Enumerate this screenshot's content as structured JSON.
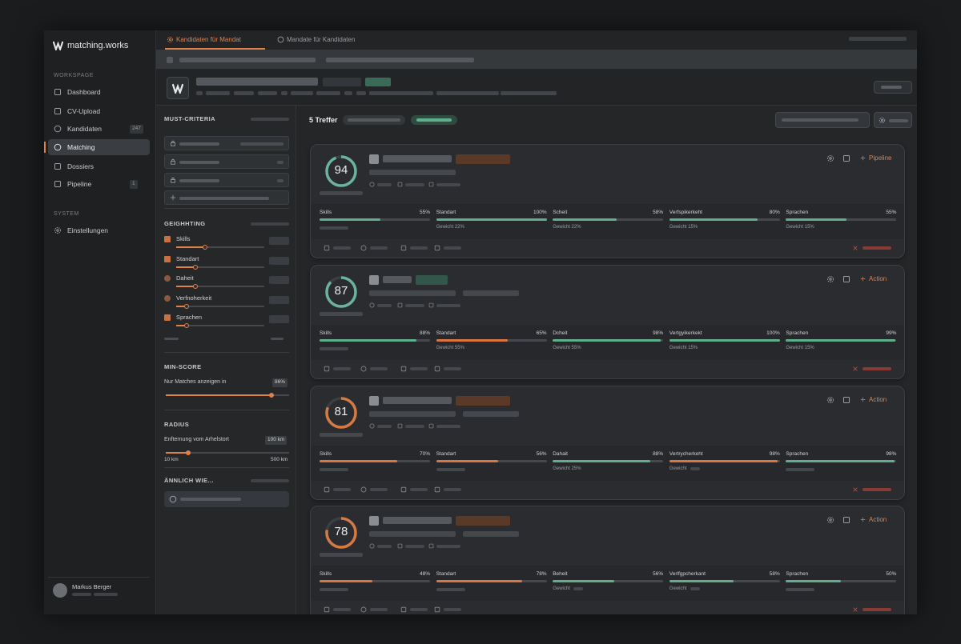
{
  "sidebar": {
    "brand": "matching.works",
    "section_workspace": "WORKSPAGE",
    "nav": [
      {
        "label": "Dashboard"
      },
      {
        "label": "CV-Upload"
      },
      {
        "label": "Kandidaten",
        "badge": 247
      },
      {
        "label": "Matching",
        "active": true
      },
      {
        "label": "Dossiers"
      },
      {
        "label": "Pipeline",
        "badge": 1
      }
    ],
    "section_system": "SYSTEM",
    "settings": "Einstellungen",
    "user": "Markus Berger"
  },
  "tabs": [
    {
      "label": "Kandidaten für Mandat",
      "active": true
    },
    {
      "label": "Mandate für Kandidaten",
      "active": false
    }
  ],
  "filters": {
    "must_criteria": "MUST-CRITERIA",
    "weighting": {
      "title": "GEIGHHTING",
      "items": [
        {
          "label": "Skills",
          "checked": true
        },
        {
          "label": "Standart",
          "checked": true
        },
        {
          "label": "Daheit",
          "checked": false
        },
        {
          "label": "Verfnoherkeit",
          "checked": false
        },
        {
          "label": "Sprachen",
          "checked": true
        }
      ]
    },
    "min_score": {
      "title": "MIN-SCORE",
      "label": "Nur Matches anzeigen in",
      "value": 86,
      "value_label": "86%"
    },
    "radius": {
      "title": "RADIUS",
      "label": "Enfternung vom Arhelstort",
      "value": {
        "value": 100,
        "label": "100 km"
      },
      "min": {
        "value": 10,
        "label": "10 km"
      },
      "max": {
        "value": 500,
        "label": "500 km"
      }
    },
    "similar": "ÄNNLICH WIE..."
  },
  "results": {
    "count_label": "5 Treffer",
    "cards": [
      {
        "score": 94,
        "color": "#6bb39a",
        "action": "Pipeline",
        "criteria": [
          {
            "name": "Skills",
            "value": 55,
            "value_label": "55%",
            "color": "#5fae8c"
          },
          {
            "name": "Standart",
            "value": 100,
            "value_label": "100%",
            "color": "#5fae8c",
            "weight": "Gewicht 22%"
          },
          {
            "name": "Scheit",
            "value": 58,
            "value_label": "58%",
            "color": "#5fae8c",
            "weight": "Gewicht 22%"
          },
          {
            "name": "Verfspikerkeht",
            "value": 80,
            "value_label": "80%",
            "color": "#5fae8c",
            "weight": "Gewicht 15%"
          },
          {
            "name": "Sprachen",
            "value": 55,
            "value_label": "55%",
            "color": "#5fae8c",
            "weight": "Gewicht 15%"
          }
        ]
      },
      {
        "score": 87,
        "color": "#6bb39a",
        "action": "Action",
        "criteria": [
          {
            "name": "Skills",
            "value": 88,
            "value_label": "88%",
            "color": "#5fae8c"
          },
          {
            "name": "Standart",
            "value": 65,
            "value_label": "65%",
            "color": "#d9773f",
            "weight": "Gewicht 55%"
          },
          {
            "name": "Dcheit",
            "value": 98,
            "value_label": "98%",
            "color": "#5fae8c",
            "weight": "Gewicht 55%"
          },
          {
            "name": "Vertgyikerkekt",
            "value": 100,
            "value_label": "100%",
            "color": "#5fae8c",
            "weight": "Gewicht 15%"
          },
          {
            "name": "Sprachen",
            "value": 99,
            "value_label": "99%",
            "color": "#5fae8c",
            "weight": "Gewicht 15%"
          }
        ]
      },
      {
        "score": 81,
        "color": "#d57a45",
        "action": "Action",
        "criteria": [
          {
            "name": "Skills",
            "value": 70,
            "value_label": "70%",
            "color": "#d9773f"
          },
          {
            "name": "Standart",
            "value": 56,
            "value_label": "56%",
            "color": "#d9773f"
          },
          {
            "name": "Dahait",
            "value": 88,
            "value_label": "88%",
            "color": "#5fae8c",
            "weight": "Gewicht 25%"
          },
          {
            "name": "Vertrycherkeht",
            "value": 98,
            "value_label": "98%",
            "color": "#d9773f",
            "weight": "Gewicht"
          },
          {
            "name": "Sprachen",
            "value": 98,
            "value_label": "98%",
            "color": "#5fae8c"
          }
        ]
      },
      {
        "score": 78,
        "color": "#d57a45",
        "action": "Action",
        "criteria": [
          {
            "name": "Skills",
            "value": 48,
            "value_label": "48%",
            "color": "#d9773f"
          },
          {
            "name": "Standart",
            "value": 78,
            "value_label": "78%",
            "color": "#d9773f"
          },
          {
            "name": "Beheit",
            "value": 56,
            "value_label": "56%",
            "color": "#5fae8c",
            "weight": "Gewicht"
          },
          {
            "name": "Verlfgpcherkant",
            "value": 58,
            "value_label": "58%",
            "color": "#5fae8c",
            "weight": "Gewicht"
          },
          {
            "name": "Sprachen",
            "value": 50,
            "value_label": "50%",
            "color": "#5fae8c"
          }
        ]
      }
    ]
  }
}
